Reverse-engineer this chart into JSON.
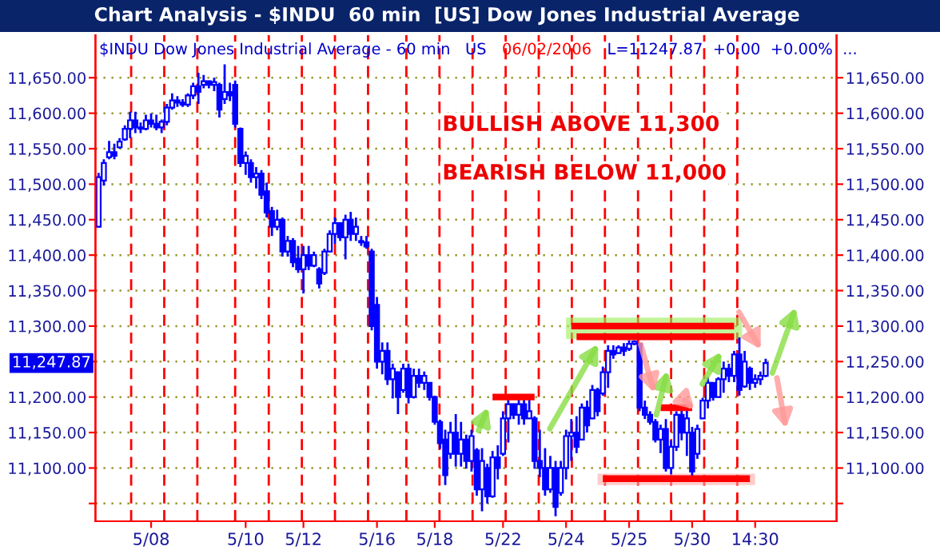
{
  "chart_data": {
    "type": "candlestick",
    "title": "Chart Analysis - $INDU  60 min  [US] Dow Jones Industrial Average",
    "subtitle": "$INDU Dow Jones Industrial Average - 60 min   US",
    "annotations": [
      "06/02/2006",
      "L=11247.87  +0.00  +0.00%  ...",
      "BULLISH ABOVE 11,300",
      "BEARISH BELOW 11,000",
      "11,247.87"
    ],
    "color": "#0000ff",
    "categories": [
      null,
      null,
      null,
      null,
      null,
      null,
      null,
      null,
      null,
      null,
      "5/08",
      null,
      null,
      null,
      null,
      null,
      null,
      null,
      null,
      null,
      null,
      null,
      null,
      null,
      null,
      null,
      null,
      null,
      "5/10",
      null,
      null,
      null,
      null,
      null,
      null,
      null,
      null,
      null,
      null,
      "5/12",
      null,
      null,
      null,
      null,
      null,
      null,
      null,
      null,
      null,
      null,
      null,
      null,
      null,
      "5/16",
      null,
      null,
      null,
      null,
      null,
      null,
      null,
      null,
      null,
      null,
      "5/18",
      null,
      null,
      null,
      null,
      null,
      null,
      null,
      null,
      null,
      null,
      null,
      null,
      "5/22",
      null,
      null,
      null,
      null,
      null,
      null,
      null,
      null,
      null,
      null,
      null,
      "5/24",
      null,
      null,
      null,
      null,
      null,
      null,
      null,
      null,
      null,
      null,
      null,
      "5/25",
      null,
      null,
      null,
      null,
      null,
      null,
      null,
      null,
      null,
      null,
      null,
      "5/30",
      null,
      null,
      null,
      null,
      null,
      null,
      null,
      null,
      null,
      null,
      null,
      "14:30",
      null,
      null
    ],
    "ohlc": [
      [
        11440,
        11516,
        11439,
        11510
      ],
      [
        11505,
        11535,
        11498,
        11530
      ],
      [
        11538,
        11561,
        11535,
        11545
      ],
      [
        11545,
        11557,
        11535,
        11540
      ],
      [
        11552,
        11565,
        11550,
        11560
      ],
      [
        11563,
        11583,
        11561,
        11578
      ],
      [
        11578,
        11602,
        11565,
        11590
      ],
      [
        11590,
        11602,
        11572,
        11580
      ],
      [
        11580,
        11587,
        11572,
        11578
      ],
      [
        11578,
        11598,
        11576,
        11590
      ],
      [
        11590,
        11600,
        11580,
        11585
      ],
      [
        11585,
        11598,
        11576,
        11580
      ],
      [
        11580,
        11591,
        11572,
        11588
      ],
      [
        11588,
        11613,
        11583,
        11608
      ],
      [
        11608,
        11628,
        11605,
        11618
      ],
      [
        11618,
        11624,
        11609,
        11615
      ],
      [
        11615,
        11620,
        11609,
        11612
      ],
      [
        11612,
        11628,
        11609,
        11625
      ],
      [
        11625,
        11643,
        11620,
        11638
      ],
      [
        11638,
        11657,
        11613,
        11630
      ],
      [
        11640,
        11654,
        11635,
        11645
      ],
      [
        11645,
        11646,
        11635,
        11640
      ],
      [
        11640,
        11650,
        11631,
        11644
      ],
      [
        11640,
        11643,
        11594,
        11605
      ],
      [
        11620,
        11669,
        11613,
        11630
      ],
      [
        11630,
        11643,
        11617,
        11625
      ],
      [
        11640,
        11646,
        11580,
        11585
      ],
      [
        11578,
        11580,
        11524,
        11530
      ],
      [
        11530,
        11546,
        11513,
        11540
      ],
      [
        11530,
        11535,
        11502,
        11510
      ],
      [
        11510,
        11524,
        11494,
        11515
      ],
      [
        11515,
        11520,
        11479,
        11485
      ],
      [
        11490,
        11502,
        11453,
        11460
      ],
      [
        11462,
        11468,
        11427,
        11440
      ],
      [
        11440,
        11464,
        11435,
        11450
      ],
      [
        11450,
        11453,
        11398,
        11405
      ],
      [
        11405,
        11427,
        11398,
        11420
      ],
      [
        11420,
        11424,
        11383,
        11390
      ],
      [
        11395,
        11413,
        11375,
        11380
      ],
      [
        11380,
        11413,
        11346,
        11400
      ],
      [
        11400,
        11413,
        11379,
        11385
      ],
      [
        11385,
        11405,
        11383,
        11400
      ],
      [
        11380,
        11383,
        11353,
        11360
      ],
      [
        11375,
        11409,
        11372,
        11405
      ],
      [
        11405,
        11435,
        11405,
        11430
      ],
      [
        11430,
        11453,
        11416,
        11445
      ],
      [
        11445,
        11446,
        11420,
        11425
      ],
      [
        11425,
        11457,
        11394,
        11450
      ],
      [
        11450,
        11461,
        11420,
        11430
      ],
      [
        11430,
        11453,
        11420,
        11440
      ],
      [
        11420,
        11427,
        11413,
        11418
      ],
      [
        11418,
        11427,
        11409,
        11412
      ],
      [
        11405,
        11409,
        11294,
        11300
      ],
      [
        11330,
        11341,
        11240,
        11250
      ],
      [
        11250,
        11277,
        11232,
        11265
      ],
      [
        11265,
        11277,
        11217,
        11225
      ],
      [
        11225,
        11247,
        11198,
        11240
      ],
      [
        11235,
        11236,
        11176,
        11200
      ],
      [
        11210,
        11247,
        11206,
        11240
      ],
      [
        11240,
        11247,
        11191,
        11200
      ],
      [
        11200,
        11240,
        11198,
        11230
      ],
      [
        11230,
        11240,
        11213,
        11220
      ],
      [
        11220,
        11236,
        11210,
        11230
      ],
      [
        11220,
        11221,
        11195,
        11200
      ],
      [
        11200,
        11202,
        11161,
        11165
      ],
      [
        11165,
        11168,
        11127,
        11135
      ],
      [
        11140,
        11154,
        11076,
        11090
      ],
      [
        11120,
        11165,
        11113,
        11150
      ],
      [
        11150,
        11176,
        11102,
        11120
      ],
      [
        11120,
        11165,
        11102,
        11140
      ],
      [
        11140,
        11147,
        11099,
        11110
      ],
      [
        11110,
        11154,
        11095,
        11145
      ],
      [
        11125,
        11128,
        11061,
        11070
      ],
      [
        11070,
        11128,
        11039,
        11110
      ],
      [
        11100,
        11106,
        11050,
        11060
      ],
      [
        11060,
        11124,
        11058,
        11115
      ],
      [
        11115,
        11132,
        11084,
        11100
      ],
      [
        11120,
        11180,
        11117,
        11170
      ],
      [
        11170,
        11202,
        11136,
        11190
      ],
      [
        11190,
        11191,
        11169,
        11175
      ],
      [
        11175,
        11199,
        11161,
        11190
      ],
      [
        11190,
        11199,
        11161,
        11170
      ],
      [
        11170,
        11202,
        11169,
        11180
      ],
      [
        11170,
        11173,
        11099,
        11110
      ],
      [
        11110,
        11154,
        11087,
        11100
      ],
      [
        11100,
        11128,
        11061,
        11070
      ],
      [
        11070,
        11117,
        11065,
        11100
      ],
      [
        11100,
        11110,
        11032,
        11045
      ],
      [
        11065,
        11110,
        11061,
        11100
      ],
      [
        11100,
        11154,
        11084,
        11145
      ],
      [
        11145,
        11169,
        11110,
        11150
      ],
      [
        11150,
        11173,
        11121,
        11130
      ],
      [
        11140,
        11191,
        11139,
        11185
      ],
      [
        11185,
        11195,
        11150,
        11160
      ],
      [
        11170,
        11217,
        11169,
        11210
      ],
      [
        11210,
        11213,
        11173,
        11180
      ],
      [
        11205,
        11243,
        11202,
        11235
      ],
      [
        11235,
        11273,
        11213,
        11265
      ],
      [
        11265,
        11273,
        11254,
        11260
      ],
      [
        11262,
        11273,
        11261,
        11270
      ],
      [
        11270,
        11276,
        11258,
        11265
      ],
      [
        11268,
        11280,
        11265,
        11275
      ],
      [
        11275,
        11280,
        11273,
        11278
      ],
      [
        11275,
        11276,
        11180,
        11185
      ],
      [
        11185,
        11195,
        11169,
        11175
      ],
      [
        11175,
        11180,
        11161,
        11165
      ],
      [
        11165,
        11169,
        11136,
        11140
      ],
      [
        11140,
        11161,
        11121,
        11155
      ],
      [
        11155,
        11169,
        11095,
        11100
      ],
      [
        11100,
        11139,
        11091,
        11130
      ],
      [
        11130,
        11180,
        11124,
        11175
      ],
      [
        11175,
        11184,
        11139,
        11150
      ],
      [
        11150,
        11184,
        11117,
        11170
      ],
      [
        11150,
        11158,
        11087,
        11095
      ],
      [
        11120,
        11161,
        11113,
        11155
      ],
      [
        11170,
        11199,
        11169,
        11195
      ],
      [
        11195,
        11228,
        11184,
        11220
      ],
      [
        11220,
        11221,
        11195,
        11200
      ],
      [
        11200,
        11228,
        11199,
        11225
      ],
      [
        11225,
        11250,
        11206,
        11240
      ],
      [
        11240,
        11247,
        11221,
        11230
      ],
      [
        11230,
        11265,
        11221,
        11260
      ],
      [
        11260,
        11284,
        11202,
        11210
      ],
      [
        11215,
        11265,
        11213,
        11250
      ],
      [
        11240,
        11243,
        11210,
        11220
      ],
      [
        11220,
        11232,
        11213,
        11225
      ],
      [
        11225,
        11236,
        11217,
        11230
      ],
      [
        11230,
        11254,
        11228,
        11247.87
      ]
    ],
    "series": [
      {
        "type": "line",
        "color": "#ff0000",
        "values": [
          null,
          null,
          null,
          null,
          null,
          null,
          null,
          null,
          null,
          null,
          null,
          null,
          null,
          null,
          null,
          null,
          null,
          null,
          null,
          null,
          null,
          null,
          null,
          null,
          null,
          null,
          null,
          null,
          null,
          null,
          null,
          null,
          null,
          null,
          null,
          null,
          null,
          null,
          null,
          null,
          null,
          null,
          null,
          null,
          null,
          null,
          null,
          null,
          null,
          null,
          null,
          null,
          null,
          null,
          null,
          null,
          null,
          null,
          null,
          null,
          null,
          null,
          null,
          null,
          null,
          null,
          null,
          null,
          null,
          null,
          null,
          null,
          null,
          null,
          null,
          null,
          null,
          null,
          null,
          null,
          null,
          null,
          null,
          null,
          null,
          null,
          null,
          null,
          null,
          null,
          11300,
          11300,
          11300,
          11300,
          11300,
          11300,
          11300,
          11300,
          11300,
          11300,
          11300,
          11300,
          11300,
          11300,
          11300,
          11300,
          11300,
          11300,
          11300,
          11300,
          11300,
          11300,
          11300,
          11300,
          11300,
          11300,
          11300,
          11300,
          11300,
          11300,
          11300,
          11300,
          null,
          null,
          null,
          null,
          null,
          null
        ]
      },
      {
        "type": "line",
        "color": "#ff0000",
        "values": [
          null,
          null,
          null,
          null,
          null,
          null,
          null,
          null,
          null,
          null,
          null,
          null,
          null,
          null,
          null,
          null,
          null,
          null,
          null,
          null,
          null,
          null,
          null,
          null,
          null,
          null,
          null,
          null,
          null,
          null,
          null,
          null,
          null,
          null,
          null,
          null,
          null,
          null,
          null,
          null,
          null,
          null,
          null,
          null,
          null,
          null,
          null,
          null,
          null,
          null,
          null,
          null,
          null,
          null,
          null,
          null,
          null,
          null,
          null,
          null,
          null,
          null,
          null,
          null,
          null,
          null,
          null,
          null,
          null,
          null,
          null,
          null,
          null,
          null,
          null,
          null,
          null,
          null,
          null,
          null,
          null,
          null,
          null,
          null,
          null,
          null,
          null,
          null,
          null,
          null,
          null,
          11285,
          11285,
          11285,
          11285,
          11285,
          11285,
          11285,
          11285,
          11285,
          11285,
          11285,
          11285,
          11285,
          11285,
          11285,
          11285,
          11285,
          11285,
          11285,
          11285,
          11285,
          11285,
          11285,
          11285,
          11285,
          11285,
          11285,
          11285,
          11285,
          11285,
          11285,
          null,
          null,
          null,
          null,
          null,
          null
        ]
      },
      {
        "type": "line",
        "color": "#ff0000",
        "values": [
          null,
          null,
          null,
          null,
          null,
          null,
          null,
          null,
          null,
          null,
          null,
          null,
          null,
          null,
          null,
          null,
          null,
          null,
          null,
          null,
          null,
          null,
          null,
          null,
          null,
          null,
          null,
          null,
          null,
          null,
          null,
          null,
          null,
          null,
          null,
          null,
          null,
          null,
          null,
          null,
          null,
          null,
          null,
          null,
          null,
          null,
          null,
          null,
          null,
          null,
          null,
          null,
          null,
          null,
          null,
          null,
          null,
          null,
          null,
          null,
          null,
          null,
          null,
          null,
          null,
          null,
          null,
          null,
          null,
          null,
          null,
          null,
          null,
          null,
          null,
          11200,
          11200,
          11200,
          11200,
          11200,
          11200,
          11200,
          11200,
          11200,
          null,
          null,
          null,
          null,
          null,
          null,
          null,
          null,
          null,
          null,
          null,
          null,
          null,
          null,
          null,
          null,
          null,
          null,
          null,
          null,
          null,
          null,
          null,
          null,
          null,
          null,
          null,
          null,
          null,
          null,
          null,
          null,
          null,
          null,
          null,
          null,
          null,
          null,
          null,
          null,
          null,
          null,
          null,
          null
        ]
      },
      {
        "type": "line",
        "color": "#ff0000",
        "values": [
          null,
          null,
          null,
          null,
          null,
          null,
          null,
          null,
          null,
          null,
          null,
          null,
          null,
          null,
          null,
          null,
          null,
          null,
          null,
          null,
          null,
          null,
          null,
          null,
          null,
          null,
          null,
          null,
          null,
          null,
          null,
          null,
          null,
          null,
          null,
          null,
          null,
          null,
          null,
          null,
          null,
          null,
          null,
          null,
          null,
          null,
          null,
          null,
          null,
          null,
          null,
          null,
          null,
          null,
          null,
          null,
          null,
          null,
          null,
          null,
          null,
          null,
          null,
          null,
          null,
          null,
          null,
          null,
          null,
          null,
          null,
          null,
          null,
          null,
          null,
          null,
          null,
          null,
          null,
          null,
          null,
          null,
          null,
          null,
          null,
          null,
          null,
          null,
          null,
          null,
          null,
          null,
          null,
          null,
          null,
          null,
          null,
          null,
          null,
          null,
          null,
          null,
          null,
          null,
          null,
          null,
          null,
          11185,
          11185,
          11185,
          11185,
          11185,
          11185,
          11185,
          null,
          null,
          null,
          null,
          null,
          null,
          null,
          null,
          null,
          null,
          null,
          null,
          null,
          null
        ]
      },
      {
        "type": "line",
        "color": "#ff0000",
        "values": [
          null,
          null,
          null,
          null,
          null,
          null,
          null,
          null,
          null,
          null,
          null,
          null,
          null,
          null,
          null,
          null,
          null,
          null,
          null,
          null,
          null,
          null,
          null,
          null,
          null,
          null,
          null,
          null,
          null,
          null,
          null,
          null,
          null,
          null,
          null,
          null,
          null,
          null,
          null,
          null,
          null,
          null,
          null,
          null,
          null,
          null,
          null,
          null,
          null,
          null,
          null,
          null,
          null,
          null,
          null,
          null,
          null,
          null,
          null,
          null,
          null,
          null,
          null,
          null,
          null,
          null,
          null,
          null,
          null,
          null,
          null,
          null,
          null,
          null,
          null,
          null,
          null,
          null,
          null,
          null,
          null,
          null,
          null,
          null,
          null,
          null,
          null,
          null,
          null,
          null,
          null,
          null,
          null,
          null,
          null,
          null,
          11085,
          11085,
          11085,
          11085,
          11085,
          11085,
          11085,
          11085,
          11085,
          11085,
          11085,
          11085,
          11085,
          11085,
          11085,
          11085,
          11085,
          11085,
          11085,
          11085,
          11085,
          11085,
          11085,
          11085,
          11085,
          11085,
          11085,
          11085,
          11085,
          null,
          null,
          null
        ]
      }
    ],
    "ylim": [
      11025,
      11710
    ],
    "yticks": [
      {
        "value": 11050,
        "label": null
      },
      {
        "value": 11100,
        "label": "11,100.00"
      },
      {
        "value": 11150,
        "label": "11,150.00"
      },
      {
        "value": 11200,
        "label": "11,200.00"
      },
      {
        "value": 11250,
        "label": null
      },
      {
        "value": 11300,
        "label": "11,300.00"
      },
      {
        "value": 11350,
        "label": "11,350.00"
      },
      {
        "value": 11400,
        "label": "11,400.00"
      },
      {
        "value": 11450,
        "label": "11,450.00"
      },
      {
        "value": 11500,
        "label": "11,500.00"
      },
      {
        "value": 11550,
        "label": "11,550.00"
      },
      {
        "value": 11600,
        "label": "11,600.00"
      },
      {
        "value": 11650,
        "label": "11,650.00"
      }
    ],
    "y2lim": [
      11025,
      11710
    ],
    "y2ticks": [
      {
        "value": 11050,
        "label": null
      },
      {
        "value": 11100,
        "label": "11,100.00"
      },
      {
        "value": 11150,
        "label": "11,150.00"
      },
      {
        "value": 11200,
        "label": "11,200.00"
      },
      {
        "value": 11250,
        "label": "11,250.00"
      },
      {
        "value": 11300,
        "label": "11,300.00"
      },
      {
        "value": 11350,
        "label": "11,350.00"
      },
      {
        "value": 11400,
        "label": "11,400.00"
      },
      {
        "value": 11450,
        "label": "11,450.00"
      },
      {
        "value": 11500,
        "label": "11,500.00"
      },
      {
        "value": 11550,
        "label": "11,550.00"
      },
      {
        "value": 11600,
        "label": "11,600.00"
      },
      {
        "value": 11650,
        "label": "11,650.00"
      }
    ],
    "grid": "y"
  }
}
